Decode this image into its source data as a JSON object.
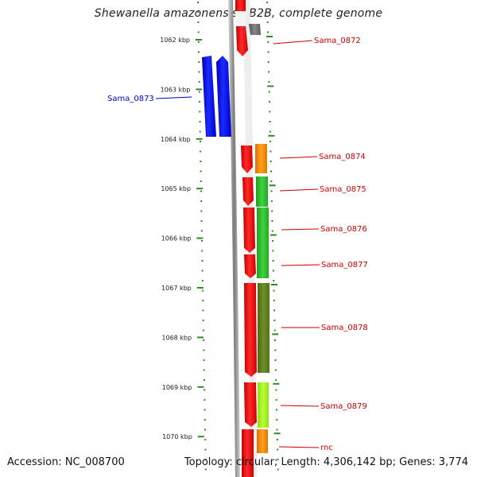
{
  "title": "Shewanella amazonensis SB2B, complete genome",
  "accession": "Accession: NC_008700",
  "summary": "Topology: circular; Length: 4,306,142 bp; Genes: 3,774",
  "colors": {
    "label_red": "#cc0000",
    "label_blue": "#0000cc",
    "tick_green": "#2e8b1e",
    "backbone": "#8a8a8a"
  },
  "ruler": {
    "unit": "kbp",
    "ticks": [
      "1062 kbp",
      "1063 kbp",
      "1064 kbp",
      "1065 kbp",
      "1066 kbp",
      "1067 kbp",
      "1068 kbp",
      "1069 kbp",
      "1070 kbp"
    ]
  },
  "genes": [
    {
      "label": "Sama_0872",
      "color": "#cc0000"
    },
    {
      "label": "Sama_0873",
      "color": "#0000cc"
    },
    {
      "label": "Sama_0874",
      "color": "#cc0000"
    },
    {
      "label": "Sama_0875",
      "color": "#cc0000"
    },
    {
      "label": "Sama_0876",
      "color": "#cc0000"
    },
    {
      "label": "Sama_0877",
      "color": "#cc0000"
    },
    {
      "label": "Sama_0878",
      "color": "#cc0000"
    },
    {
      "label": "Sama_0879",
      "color": "#cc0000"
    },
    {
      "label": "rnc",
      "color": "#cc0000"
    }
  ]
}
